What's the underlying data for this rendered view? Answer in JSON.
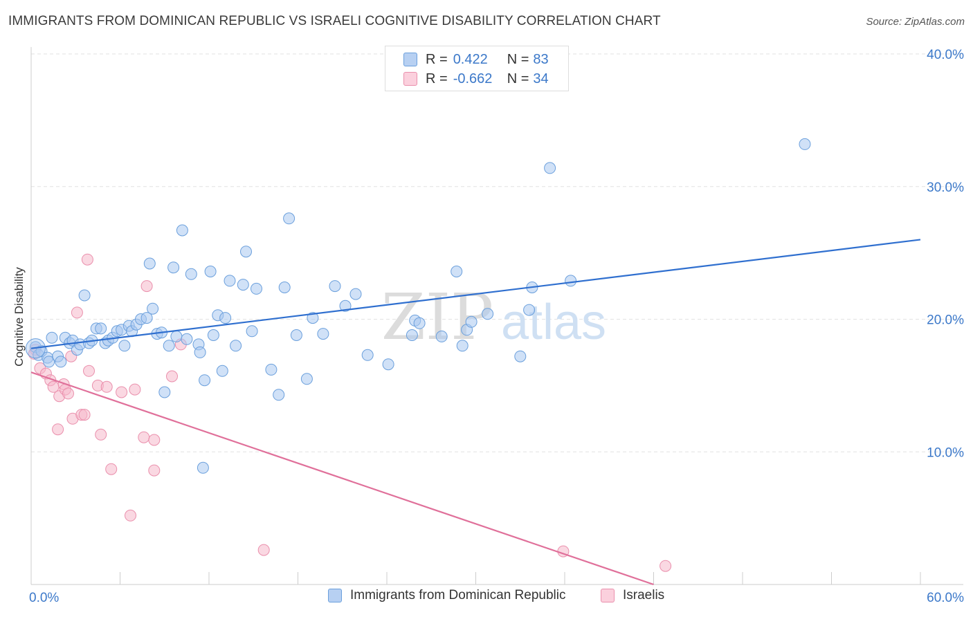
{
  "title": "IMMIGRANTS FROM DOMINICAN REPUBLIC VS ISRAELI COGNITIVE DISABILITY CORRELATION CHART",
  "source": "Source: ZipAtlas.com",
  "watermark": {
    "zip": "ZIP",
    "atlas": "atlas"
  },
  "colors": {
    "blue_fill": "#a9c8f0",
    "blue_stroke": "#6a9fdc",
    "blue_line": "#2f6fcf",
    "pink_fill": "#f6b8cb",
    "pink_stroke": "#ea8fac",
    "pink_line": "#e0709a",
    "axis_label": "#3b78c9",
    "grid": "#e2e2e2"
  },
  "legend": {
    "r_label": "R =",
    "n_label": "N =",
    "rows": [
      {
        "series": "blue",
        "r": "0.422",
        "n": "83"
      },
      {
        "series": "pink",
        "r": "-0.662",
        "n": "34"
      }
    ]
  },
  "bottom_legend": [
    "Immigrants from Dominican Republic",
    "Israelis"
  ],
  "chart_data": {
    "type": "scatter",
    "title": "IMMIGRANTS FROM DOMINICAN REPUBLIC VS ISRAELI COGNITIVE DISABILITY CORRELATION CHART",
    "xlabel": "",
    "ylabel": "Cognitive Disability",
    "xlim": [
      0,
      60
    ],
    "ylim": [
      0,
      40
    ],
    "x_tick_labels": [
      "0.0%",
      "60.0%"
    ],
    "y_ticks": [
      10,
      20,
      30,
      40
    ],
    "y_tick_labels": [
      "10.0%",
      "20.0%",
      "30.0%",
      "40.0%"
    ],
    "grid": true,
    "series": [
      {
        "name": "Immigrants from Dominican Republic",
        "color": "blue",
        "trendline": {
          "x": [
            0,
            60
          ],
          "y": [
            17.8,
            26.0
          ]
        },
        "points": [
          [
            0.3,
            17.9
          ],
          [
            0.5,
            17.3
          ],
          [
            0.7,
            17.6
          ],
          [
            1.1,
            17.1
          ],
          [
            1.2,
            16.8
          ],
          [
            1.4,
            18.6
          ],
          [
            1.8,
            17.2
          ],
          [
            2.0,
            16.8
          ],
          [
            2.3,
            18.6
          ],
          [
            2.6,
            18.2
          ],
          [
            2.8,
            18.4
          ],
          [
            3.1,
            17.7
          ],
          [
            3.3,
            18.1
          ],
          [
            3.6,
            21.8
          ],
          [
            3.9,
            18.2
          ],
          [
            4.1,
            18.4
          ],
          [
            4.4,
            19.3
          ],
          [
            4.7,
            19.3
          ],
          [
            5.0,
            18.2
          ],
          [
            5.2,
            18.4
          ],
          [
            5.5,
            18.6
          ],
          [
            5.8,
            19.1
          ],
          [
            6.1,
            19.2
          ],
          [
            6.3,
            18.0
          ],
          [
            6.6,
            19.5
          ],
          [
            6.8,
            19.1
          ],
          [
            7.1,
            19.6
          ],
          [
            7.4,
            20.0
          ],
          [
            7.8,
            20.1
          ],
          [
            8.0,
            24.2
          ],
          [
            8.2,
            20.8
          ],
          [
            8.5,
            18.9
          ],
          [
            8.8,
            19.0
          ],
          [
            9.0,
            14.5
          ],
          [
            9.3,
            18.0
          ],
          [
            9.6,
            23.9
          ],
          [
            9.8,
            18.7
          ],
          [
            10.2,
            26.7
          ],
          [
            10.5,
            18.5
          ],
          [
            10.8,
            23.4
          ],
          [
            11.3,
            18.1
          ],
          [
            11.4,
            17.5
          ],
          [
            11.7,
            15.4
          ],
          [
            12.1,
            23.6
          ],
          [
            12.3,
            18.8
          ],
          [
            12.6,
            20.3
          ],
          [
            12.9,
            16.1
          ],
          [
            13.1,
            20.1
          ],
          [
            13.4,
            22.9
          ],
          [
            13.8,
            18.0
          ],
          [
            14.3,
            22.6
          ],
          [
            14.5,
            25.1
          ],
          [
            14.9,
            19.1
          ],
          [
            15.2,
            22.3
          ],
          [
            16.2,
            16.2
          ],
          [
            16.7,
            14.3
          ],
          [
            17.1,
            22.4
          ],
          [
            17.4,
            27.6
          ],
          [
            17.9,
            18.8
          ],
          [
            18.6,
            15.5
          ],
          [
            19.0,
            20.1
          ],
          [
            19.7,
            18.9
          ],
          [
            20.5,
            22.5
          ],
          [
            21.2,
            21.0
          ],
          [
            21.9,
            21.9
          ],
          [
            22.7,
            17.3
          ],
          [
            24.1,
            16.6
          ],
          [
            25.7,
            18.8
          ],
          [
            25.9,
            19.9
          ],
          [
            26.2,
            19.7
          ],
          [
            27.7,
            18.7
          ],
          [
            28.7,
            23.6
          ],
          [
            29.1,
            18.0
          ],
          [
            29.4,
            19.2
          ],
          [
            29.7,
            19.8
          ],
          [
            30.8,
            20.4
          ],
          [
            33.0,
            17.2
          ],
          [
            33.6,
            20.7
          ],
          [
            33.8,
            22.4
          ],
          [
            35.0,
            31.4
          ],
          [
            36.4,
            22.9
          ],
          [
            11.6,
            8.8
          ],
          [
            52.2,
            33.2
          ]
        ]
      },
      {
        "name": "Israelis",
        "color": "pink",
        "trendline": {
          "x": [
            0,
            42.0
          ],
          "y": [
            16.0,
            0.0
          ]
        },
        "points": [
          [
            0.3,
            17.7
          ],
          [
            0.6,
            16.3
          ],
          [
            1.0,
            15.9
          ],
          [
            1.3,
            15.4
          ],
          [
            1.5,
            14.9
          ],
          [
            1.8,
            11.7
          ],
          [
            1.9,
            14.2
          ],
          [
            2.2,
            15.1
          ],
          [
            2.3,
            14.7
          ],
          [
            2.5,
            14.4
          ],
          [
            2.7,
            17.2
          ],
          [
            2.8,
            12.5
          ],
          [
            3.1,
            20.5
          ],
          [
            3.4,
            12.8
          ],
          [
            3.6,
            12.8
          ],
          [
            3.8,
            24.5
          ],
          [
            3.9,
            16.1
          ],
          [
            4.5,
            15.0
          ],
          [
            4.7,
            11.3
          ],
          [
            5.1,
            14.9
          ],
          [
            5.4,
            8.7
          ],
          [
            6.1,
            14.5
          ],
          [
            6.7,
            5.2
          ],
          [
            7.0,
            14.7
          ],
          [
            7.6,
            11.1
          ],
          [
            7.8,
            22.5
          ],
          [
            8.3,
            10.9
          ],
          [
            8.3,
            8.6
          ],
          [
            9.5,
            15.7
          ],
          [
            10.1,
            18.1
          ],
          [
            15.7,
            2.6
          ],
          [
            35.9,
            2.5
          ],
          [
            42.8,
            1.4
          ],
          [
            0.2,
            17.4
          ]
        ]
      }
    ]
  }
}
